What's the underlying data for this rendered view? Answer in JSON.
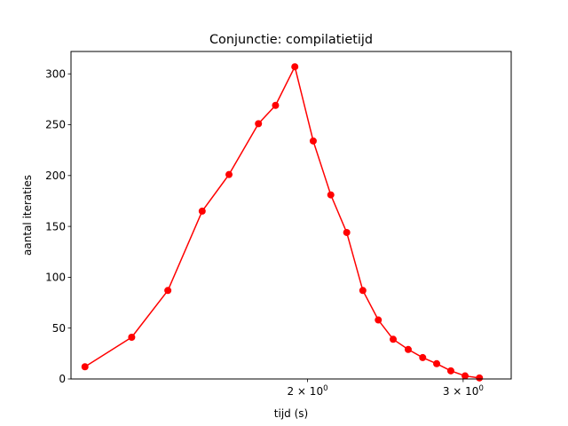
{
  "chart_data": {
    "type": "line",
    "title": "Conjunctie: compilatietijd",
    "xlabel": "tijd (s)",
    "ylabel": "aantal iteraties",
    "xscale": "log",
    "xlim": [
      1.08,
      3.4
    ],
    "ylim": [
      0,
      322
    ],
    "grid": false,
    "x_ticks": [
      {
        "value": 2,
        "base": "2 × 10",
        "exp": "0"
      },
      {
        "value": 3,
        "base": "3 × 10",
        "exp": "0"
      }
    ],
    "y_ticks": [
      0,
      50,
      100,
      150,
      200,
      250,
      300
    ],
    "color": "#ff0000",
    "series": [
      {
        "x": [
          1.12,
          1.265,
          1.39,
          1.52,
          1.63,
          1.76,
          1.84,
          1.935,
          2.03,
          2.125,
          2.215,
          2.31,
          2.405,
          2.5,
          2.6,
          2.7,
          2.8,
          2.905,
          3.015,
          3.13
        ],
        "y": [
          12,
          41,
          87,
          165,
          201,
          251,
          269,
          307,
          234,
          181,
          144,
          87,
          58,
          39,
          29,
          21,
          15,
          8,
          3,
          1
        ]
      }
    ]
  }
}
